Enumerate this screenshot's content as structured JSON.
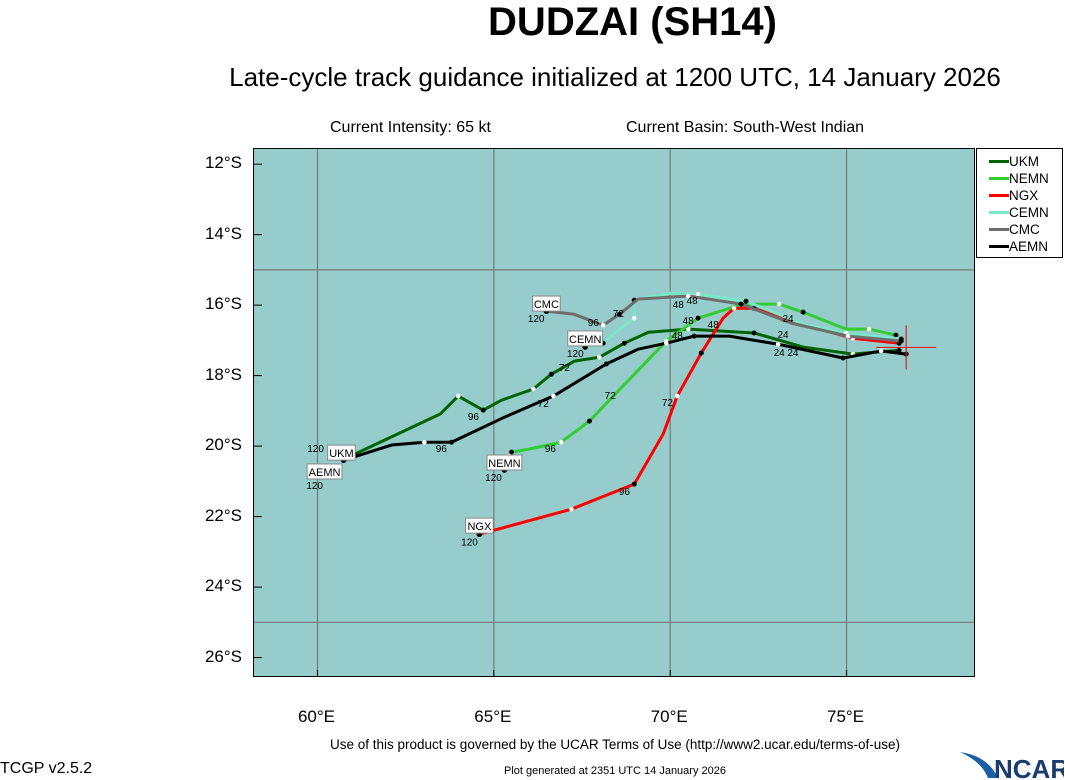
{
  "header": {
    "title": "DUDZAI (SH14)",
    "subtitle": "Late-cycle track guidance initialized at 1200 UTC, 14 January 2026",
    "intensity": "Current Intensity: 65 kt",
    "basin": "Current Basin: South-West Indian"
  },
  "footer": {
    "terms": "Use of this product is governed by the UCAR Terms of Use (http://www2.ucar.edu/terms-of-use)",
    "version": "TCGP v2.5.2",
    "generated": "Plot generated at 2351 UTC   14 January 2026",
    "logo": "NCAR"
  },
  "chart_data": {
    "type": "line",
    "title": "DUDZAI (SH14)",
    "xlim": [
      58.2,
      78.67
    ],
    "ylim": [
      -26.58,
      -11.57
    ],
    "x_ticks": [
      {
        "v": 60,
        "label": "60°E"
      },
      {
        "v": 65,
        "label": "65°E"
      },
      {
        "v": 70,
        "label": "70°E"
      },
      {
        "v": 75,
        "label": "75°E"
      }
    ],
    "y_ticks": [
      {
        "v": -12,
        "label": "12°S"
      },
      {
        "v": -14,
        "label": "14°S"
      },
      {
        "v": -16,
        "label": "16°S"
      },
      {
        "v": -18,
        "label": "18°S"
      },
      {
        "v": -20,
        "label": "20°S"
      },
      {
        "v": -22,
        "label": "22°S"
      },
      {
        "v": -24,
        "label": "24°S"
      },
      {
        "v": -26,
        "label": "26°S"
      }
    ],
    "grid_lon": [
      60,
      65,
      70,
      75
    ],
    "grid_lat": [
      -15,
      -25
    ],
    "legend_position": "top-right (outside)",
    "background": "#96cccc",
    "current_position": {
      "lon": 76.69,
      "lat": -17.2
    },
    "series": [
      {
        "name": "UKM",
        "color": "#006400",
        "points": [
          [
            76.49,
            -17.28
          ],
          [
            75.18,
            -17.39
          ],
          [
            73.77,
            -17.19
          ],
          [
            72.38,
            -16.79
          ],
          [
            70.51,
            -16.68
          ],
          [
            69.38,
            -16.77
          ],
          [
            68.7,
            -17.08
          ],
          [
            67.99,
            -17.48
          ],
          [
            67.28,
            -17.59
          ],
          [
            66.63,
            -17.96
          ],
          [
            66.12,
            -18.38
          ],
          [
            65.21,
            -18.7
          ],
          [
            64.7,
            -18.98
          ],
          [
            63.99,
            -18.58
          ],
          [
            63.48,
            -19.09
          ],
          [
            61.05,
            -20.23
          ],
          [
            60.74,
            -20.34
          ]
        ],
        "label_pos": [
          60.68,
          -20.2
        ]
      },
      {
        "name": "NEMN",
        "color": "#33cc33",
        "points": [
          [
            76.4,
            -16.85
          ],
          [
            75.64,
            -16.68
          ],
          [
            74.99,
            -16.68
          ],
          [
            73.77,
            -16.2
          ],
          [
            73.09,
            -15.97
          ],
          [
            72.07,
            -15.97
          ],
          [
            70.79,
            -16.37
          ],
          [
            69.89,
            -17.02
          ],
          [
            68.61,
            -18.35
          ],
          [
            67.71,
            -19.29
          ],
          [
            66.91,
            -19.89
          ],
          [
            65.98,
            -20.09
          ],
          [
            65.5,
            -20.17
          ],
          [
            65.44,
            -20.28
          ],
          [
            65.3,
            -20.68
          ]
        ],
        "label_pos": [
          65.3,
          -20.48
        ]
      },
      {
        "name": "NGX",
        "color": "#ff0000",
        "points": [
          [
            76.49,
            -17.08
          ],
          [
            75.18,
            -16.94
          ],
          [
            73.63,
            -16.51
          ],
          [
            72.38,
            -16.09
          ],
          [
            71.81,
            -16.09
          ],
          [
            71.5,
            -16.37
          ],
          [
            70.88,
            -17.36
          ],
          [
            70.2,
            -18.58
          ],
          [
            69.8,
            -19.66
          ],
          [
            68.98,
            -21.08
          ],
          [
            67.2,
            -21.79
          ],
          [
            64.59,
            -22.5
          ]
        ],
        "label_pos": [
          64.59,
          -22.27
        ]
      },
      {
        "name": "CEMN",
        "color": "#77e8c8",
        "points": [
          [
            76.55,
            -16.96
          ],
          [
            74.99,
            -16.79
          ],
          [
            73.77,
            -16.54
          ],
          [
            72.15,
            -15.89
          ],
          [
            70.79,
            -15.69
          ],
          [
            70.03,
            -15.66
          ],
          [
            68.98,
            -15.86
          ],
          [
            68.98,
            -16.37
          ],
          [
            68.61,
            -16.65
          ],
          [
            68.1,
            -17.08
          ],
          [
            67.59,
            -17.19
          ]
        ],
        "label_pos": [
          67.59,
          -16.96
        ]
      },
      {
        "name": "CMC",
        "color": "#6e6e6e",
        "points": [
          [
            76.55,
            -17.02
          ],
          [
            75.04,
            -16.88
          ],
          [
            73.43,
            -16.51
          ],
          [
            72.01,
            -15.97
          ],
          [
            70.51,
            -15.74
          ],
          [
            69.09,
            -15.83
          ],
          [
            68.56,
            -16.26
          ],
          [
            68.1,
            -16.57
          ],
          [
            67.28,
            -16.26
          ],
          [
            66.49,
            -16.17
          ]
        ],
        "label_pos": [
          66.49,
          -15.97
        ]
      },
      {
        "name": "AEMN",
        "color": "#000000",
        "points": [
          [
            76.69,
            -17.39
          ],
          [
            75.98,
            -17.3
          ],
          [
            75.18,
            -17.45
          ],
          [
            74.9,
            -17.5
          ],
          [
            73.06,
            -17.11
          ],
          [
            71.67,
            -16.88
          ],
          [
            70.68,
            -16.88
          ],
          [
            69.89,
            -17.08
          ],
          [
            69.09,
            -17.25
          ],
          [
            68.19,
            -17.67
          ],
          [
            66.69,
            -18.58
          ],
          [
            65.3,
            -19.18
          ],
          [
            63.8,
            -19.89
          ],
          [
            63.03,
            -19.89
          ],
          [
            62.1,
            -19.97
          ],
          [
            60.74,
            -20.4
          ]
        ],
        "label_pos": [
          60.2,
          -20.28
        ]
      }
    ],
    "hour_labels": [
      {
        "t": "120",
        "lon": 60.4,
        "lat": -20.51
      },
      {
        "t": "96",
        "lon": 64.42,
        "lat": -19.15
      },
      {
        "t": "72",
        "lon": 67.0,
        "lat": -17.76
      },
      {
        "t": "48",
        "lon": 70.2,
        "lat": -16.85
      },
      {
        "t": "24",
        "lon": 73.09,
        "lat": -17.33
      },
      {
        "t": "120",
        "lon": 59.92,
        "lat": -20.65
      },
      {
        "t": "96",
        "lon": 63.51,
        "lat": -20.06
      },
      {
        "t": "72",
        "lon": 66.4,
        "lat": -18.78
      },
      {
        "t": "24",
        "lon": 73.48,
        "lat": -17.33
      },
      {
        "t": "120",
        "lon": 64.99,
        "lat": -20.88
      },
      {
        "t": "96",
        "lon": 66.6,
        "lat": -20.06
      },
      {
        "t": "72",
        "lon": 68.3,
        "lat": -18.55
      },
      {
        "t": "48",
        "lon": 70.51,
        "lat": -16.54
      },
      {
        "t": "120",
        "lon": 64.31,
        "lat": -22.7
      },
      {
        "t": "96",
        "lon": 68.7,
        "lat": -21.28
      },
      {
        "t": "72",
        "lon": 69.92,
        "lat": -18.75
      },
      {
        "t": "48",
        "lon": 71.22,
        "lat": -16.54
      },
      {
        "t": "24",
        "lon": 73.34,
        "lat": -16.37
      },
      {
        "t": "120",
        "lon": 67.31,
        "lat": -17.36
      },
      {
        "t": "48",
        "lon": 70.23,
        "lat": -15.97
      },
      {
        "t": "120",
        "lon": 66.2,
        "lat": -16.37
      },
      {
        "t": "96",
        "lon": 67.82,
        "lat": -16.71
      },
      {
        "t": "72",
        "lon": 68.53,
        "lat": -16.23
      },
      {
        "t": "48",
        "lon": 70.51,
        "lat": -15.86
      },
      {
        "t": "24",
        "lon": 73.2,
        "lat": -16.71
      }
    ]
  }
}
